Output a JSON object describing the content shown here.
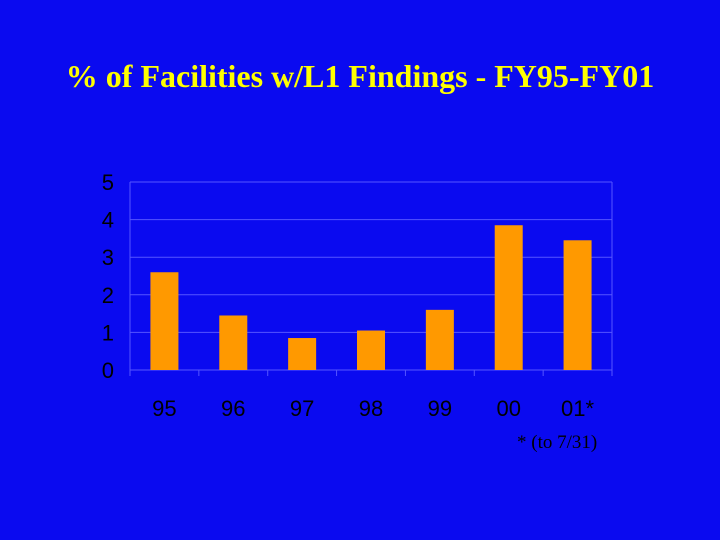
{
  "chart_data": {
    "type": "bar",
    "title": "% of Facilities w/L1 Findings - FY95-FY01",
    "categories": [
      "95",
      "96",
      "97",
      "98",
      "99",
      "00",
      "01*"
    ],
    "values": [
      2.6,
      1.45,
      0.85,
      1.05,
      1.6,
      3.85,
      3.45
    ],
    "ylim": [
      0,
      5
    ],
    "yticks": [
      "0",
      "1",
      "2",
      "3",
      "4",
      "5"
    ],
    "grid": true,
    "xlabel": "",
    "ylabel": ""
  },
  "footnote": "* (to 7/31)",
  "colors": {
    "background": "#0a0af0",
    "bar": "#ff9900",
    "title": "#ffff00",
    "axis_text": "#000000",
    "grid": "#5555ff"
  }
}
